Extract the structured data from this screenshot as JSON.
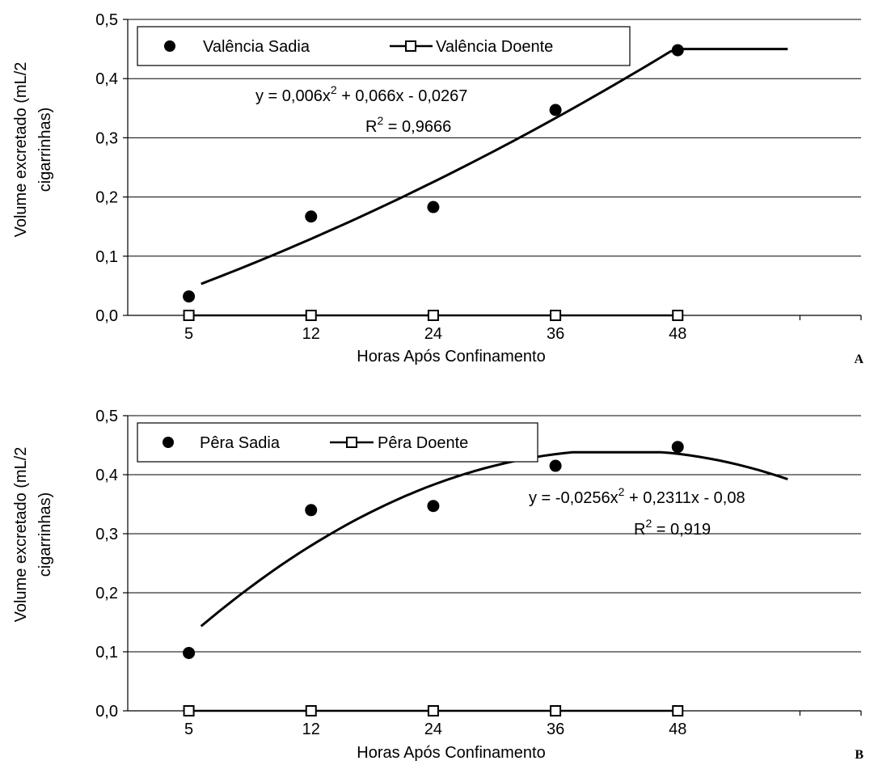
{
  "chart_data": [
    {
      "type": "scatter",
      "panel_label": "A",
      "xlabel": "Horas Após Confinamento",
      "ylabel": [
        "Volume excretado (mL/2",
        "cigarrinhas)"
      ],
      "categories": [
        "5",
        "12",
        "24",
        "36",
        "48"
      ],
      "yticks": [
        "0,0",
        "0,1",
        "0,2",
        "0,3",
        "0,4",
        "0,5"
      ],
      "ylim": [
        0,
        0.5
      ],
      "grid": "horizontal",
      "legend_position": "top-left",
      "series": [
        {
          "name": "Valência Sadia",
          "marker": "filled-circle",
          "values": [
            0.032,
            0.167,
            0.183,
            0.347,
            0.448
          ]
        },
        {
          "name": "Valência Doente",
          "marker": "open-square-line",
          "values": [
            0,
            0,
            0,
            0,
            0
          ]
        }
      ],
      "trendline": {
        "coefficients": [
          0.006,
          0.066,
          -0.0267
        ],
        "x_start": 0.1,
        "x_end": 4.9,
        "cap": 0.45
      },
      "equation": {
        "line1": "y = 0,006x",
        "sup1": "2",
        "line1_rest": " + 0,066x - 0,0267",
        "r2_prefix": "R",
        "r2_sup": "2",
        "r2_rest": " = 0,9666"
      }
    },
    {
      "type": "scatter",
      "panel_label": "B",
      "xlabel": "Horas Após Confinamento",
      "ylabel": [
        "Volume excretado (mL/2",
        "cigarrinhas)"
      ],
      "categories": [
        "5",
        "12",
        "24",
        "36",
        "48"
      ],
      "yticks": [
        "0,0",
        "0,1",
        "0,2",
        "0,3",
        "0,4",
        "0,5"
      ],
      "ylim": [
        0,
        0.5
      ],
      "grid": "horizontal",
      "legend_position": "top-left",
      "series": [
        {
          "name": "Pêra Sadia",
          "marker": "filled-circle",
          "values": [
            0.098,
            0.34,
            0.347,
            0.415,
            0.447
          ]
        },
        {
          "name": "Pêra Doente",
          "marker": "open-square-line",
          "values": [
            0,
            0,
            0,
            0,
            0
          ]
        }
      ],
      "trendline": {
        "coefficients": [
          -0.0256,
          0.2311,
          -0.08
        ],
        "x_start": 0.1,
        "x_end": 4.9,
        "cap": 0.438
      },
      "equation": {
        "line1": "y = -0,0256x",
        "sup1": "2",
        "line1_rest": " + 0,2311x - 0,08",
        "r2_prefix": "R",
        "r2_sup": "2",
        "r2_rest": " = 0,919"
      }
    }
  ]
}
